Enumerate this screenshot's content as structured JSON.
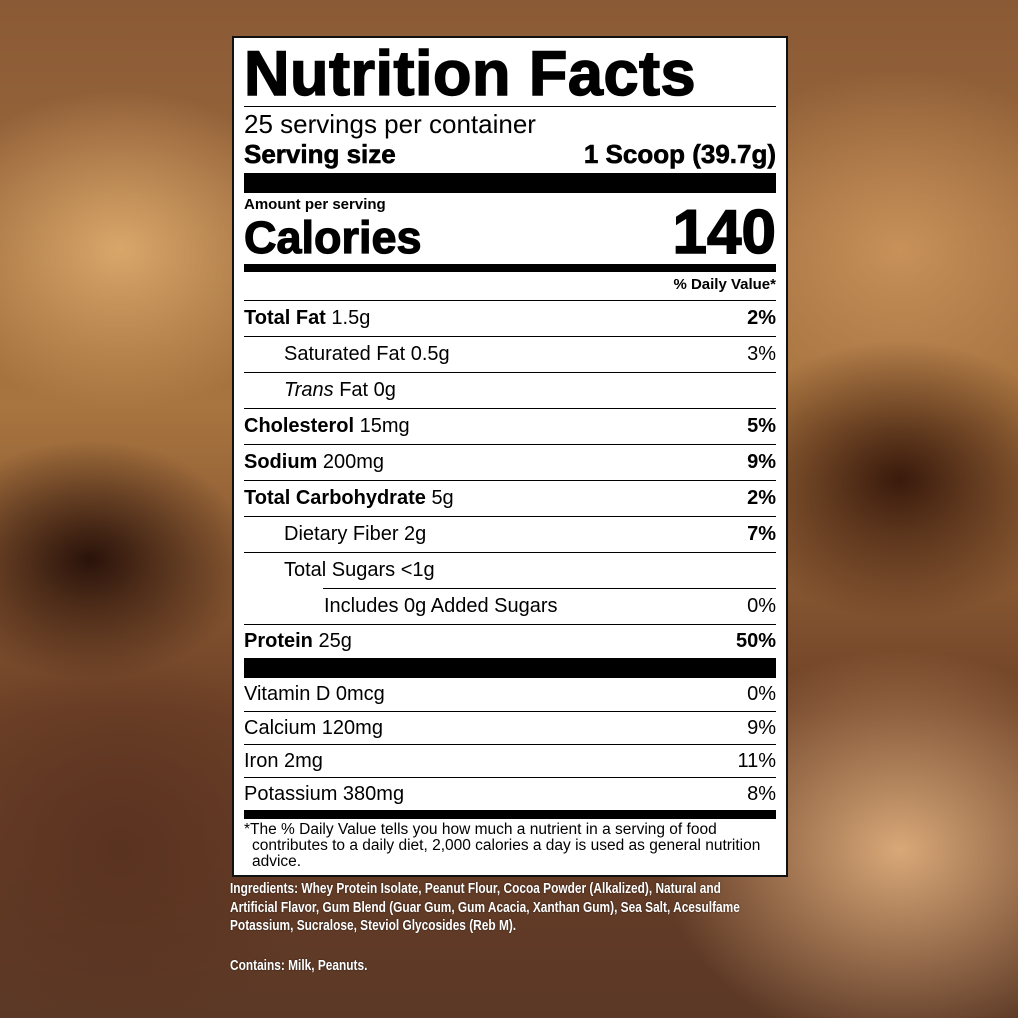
{
  "label": {
    "title": "Nutrition Facts",
    "servings_per_container": "25 servings per container",
    "serving_size_label": "Serving size",
    "serving_size_value": "1 Scoop (39.7g)",
    "amount_per_serving": "Amount per serving",
    "calories_label": "Calories",
    "calories_value": "140",
    "daily_value_header": "% Daily Value*",
    "nutrients": [
      {
        "name": "Total Fat",
        "amount": "1.5g",
        "dv": "2%"
      },
      {
        "name": "Saturated Fat",
        "amount": "0.5g",
        "dv": "3%"
      },
      {
        "name": "Trans",
        "name2": "Fat",
        "amount": "0g",
        "dv": ""
      },
      {
        "name": "Cholesterol",
        "amount": "15mg",
        "dv": "5%"
      },
      {
        "name": "Sodium",
        "amount": "200mg",
        "dv": "9%"
      },
      {
        "name": "Total Carbohydrate",
        "amount": "5g",
        "dv": "2%"
      },
      {
        "name": "Dietary Fiber",
        "amount": "2g",
        "dv": "7%"
      },
      {
        "name": "Total Sugars",
        "amount": "<1g",
        "dv": ""
      },
      {
        "name": "Includes 0g Added Sugars",
        "amount": "",
        "dv": "0%"
      },
      {
        "name": "Protein",
        "amount": "25g",
        "dv": "50%"
      }
    ],
    "vitamins": [
      {
        "name": "Vitamin D 0mcg",
        "dv": "0%"
      },
      {
        "name": "Calcium 120mg",
        "dv": "9%"
      },
      {
        "name": "Iron 2mg",
        "dv": "11%"
      },
      {
        "name": "Potassium 380mg",
        "dv": "8%"
      }
    ],
    "footnote": "*The % Daily Value tells you how much a nutrient in a serving of food contributes to a daily diet, 2,000 calories a day is used as general nutrition advice."
  },
  "ingredients": "Ingredients: Whey Protein Isolate, Peanut Flour, Cocoa Powder (Alkalized), Natural and Artificial Flavor, Gum Blend (Guar Gum, Gum Acacia, Xanthan Gum), Sea Salt, Acesulfame Potassium, Sucralose, Steviol Glycosides (Reb M).",
  "contains": "Contains: Milk, Peanuts."
}
